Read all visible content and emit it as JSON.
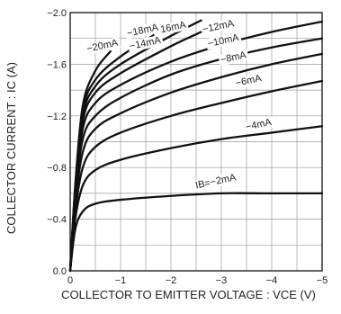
{
  "chart_data": {
    "type": "line",
    "xlabel": "COLLECTOR TO EMITTER VOLTAGE : VCE (V)",
    "ylabel": "COLLECTOR CURRENT : IC (A)",
    "xlim": [
      0,
      -5
    ],
    "ylim": [
      0,
      -2.0
    ],
    "x_ticks": [
      "0",
      "−1",
      "−2",
      "−3",
      "−4",
      "−5"
    ],
    "y_ticks": [
      "0.0",
      "−0.4",
      "−0.8",
      "−1.2",
      "−1.6",
      "−2.0"
    ],
    "grid": true,
    "series": [
      {
        "name": "IB=−2mA",
        "x": [
          0,
          -0.1,
          -0.25,
          -0.5,
          -1,
          -2,
          -3,
          -4,
          -5
        ],
        "y": [
          0,
          -0.32,
          -0.46,
          -0.52,
          -0.55,
          -0.58,
          -0.6,
          -0.6,
          -0.6
        ]
      },
      {
        "name": "−4mA",
        "x": [
          0,
          -0.1,
          -0.25,
          -0.5,
          -1,
          -2,
          -3,
          -4,
          -5
        ],
        "y": [
          0,
          -0.4,
          -0.66,
          -0.78,
          -0.86,
          -0.95,
          -1.02,
          -1.07,
          -1.12
        ]
      },
      {
        "name": "−6mA",
        "x": [
          0,
          -0.1,
          -0.25,
          -0.5,
          -1,
          -2,
          -3,
          -4,
          -5
        ],
        "y": [
          0,
          -0.45,
          -0.8,
          -0.96,
          -1.07,
          -1.2,
          -1.3,
          -1.39,
          -1.47
        ]
      },
      {
        "name": "−8mA",
        "x": [
          0,
          -0.1,
          -0.25,
          -0.5,
          -1,
          -2,
          -3,
          -4,
          -5
        ],
        "y": [
          0,
          -0.5,
          -0.92,
          -1.1,
          -1.22,
          -1.38,
          -1.5,
          -1.6,
          -1.68
        ]
      },
      {
        "name": "−10mA",
        "x": [
          0,
          -0.1,
          -0.25,
          -0.5,
          -1,
          -2,
          -3,
          -4,
          -5
        ],
        "y": [
          0,
          -0.55,
          -1.02,
          -1.2,
          -1.34,
          -1.52,
          -1.64,
          -1.73,
          -1.8
        ]
      },
      {
        "name": "−12mA",
        "x": [
          0,
          -0.1,
          -0.25,
          -0.5,
          -1,
          -2,
          -3,
          -4,
          -5
        ],
        "y": [
          0,
          -0.58,
          -1.1,
          -1.3,
          -1.44,
          -1.62,
          -1.75,
          -1.85,
          -1.93
        ]
      },
      {
        "name": "−14mA",
        "x": [
          0,
          -0.1,
          -0.25,
          -0.5,
          -1,
          -2,
          -2.6
        ],
        "y": [
          0,
          -0.6,
          -1.16,
          -1.38,
          -1.53,
          -1.74,
          -1.85
        ]
      },
      {
        "name": "−16mA",
        "x": [
          0,
          -0.1,
          -0.25,
          -0.5,
          -1,
          -2,
          -2.6
        ],
        "y": [
          0,
          -0.62,
          -1.2,
          -1.43,
          -1.6,
          -1.82,
          -1.94
        ]
      },
      {
        "name": "−18mA",
        "x": [
          0,
          -0.1,
          -0.25,
          -0.5,
          -1,
          -1.8
        ],
        "y": [
          0,
          -0.64,
          -1.24,
          -1.48,
          -1.66,
          -1.86
        ]
      },
      {
        "name": "−20mA",
        "x": [
          0,
          -0.1,
          -0.25,
          -0.5,
          -0.8
        ],
        "y": [
          0,
          -0.66,
          -1.28,
          -1.55,
          -1.7
        ]
      }
    ],
    "curve_labels": [
      {
        "text": "IB=−2mA",
        "x": -2.9,
        "y": -0.67
      },
      {
        "text": "−4mA",
        "x": -3.75,
        "y": -1.11
      },
      {
        "text": "−6mA",
        "x": -3.55,
        "y": -1.45
      },
      {
        "text": "−8mA",
        "x": -3.25,
        "y": -1.63
      },
      {
        "text": "−10mA",
        "x": -3.05,
        "y": -1.76
      },
      {
        "text": "−12mA",
        "x": -2.95,
        "y": -1.87
      },
      {
        "text": "−14mA",
        "x": -1.5,
        "y": -1.74
      },
      {
        "text": "−16mA",
        "x": -2.0,
        "y": -1.86
      },
      {
        "text": "−18mA",
        "x": -1.45,
        "y": -1.84
      },
      {
        "text": "−20mA",
        "x": -0.65,
        "y": -1.72
      }
    ]
  }
}
